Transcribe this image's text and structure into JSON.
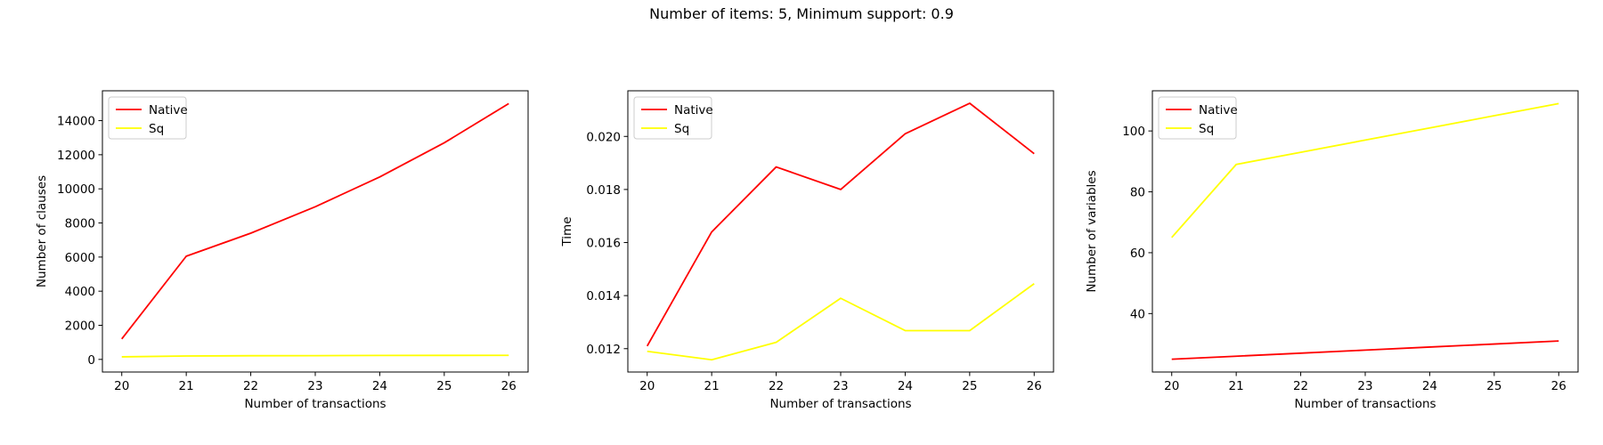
{
  "suptitle": "Number of items: 5, Minimum support: 0.9",
  "colors": {
    "Native": "#ff0000",
    "Sq": "#ffff00"
  },
  "chart_data": [
    {
      "type": "line",
      "x": [
        20,
        21,
        22,
        23,
        24,
        25,
        26
      ],
      "xticks": [
        20,
        21,
        22,
        23,
        24,
        25,
        26
      ],
      "xlim": [
        19.7,
        26.3
      ],
      "series": [
        {
          "name": "Native",
          "values": [
            1200,
            6050,
            7400,
            8950,
            10700,
            12700,
            15000
          ]
        },
        {
          "name": "Sq",
          "values": [
            150,
            200,
            215,
            220,
            230,
            235,
            240
          ]
        }
      ],
      "xlabel": "Number of transactions",
      "ylabel": "Number of clauses",
      "ylim": [
        -740,
        15750
      ],
      "yticks": [
        0,
        2000,
        4000,
        6000,
        8000,
        10000,
        12000,
        14000
      ],
      "ytick_labels": [
        "0",
        "2000",
        "4000",
        "6000",
        "8000",
        "10000",
        "12000",
        "14000"
      ],
      "legend": "upper-left",
      "grid": false
    },
    {
      "type": "line",
      "x": [
        20,
        21,
        22,
        23,
        24,
        25,
        26
      ],
      "xticks": [
        20,
        21,
        22,
        23,
        24,
        25,
        26
      ],
      "xlim": [
        19.7,
        26.3
      ],
      "series": [
        {
          "name": "Native",
          "values": [
            0.0121,
            0.0164,
            0.01885,
            0.018,
            0.0201,
            0.02125,
            0.01935
          ]
        },
        {
          "name": "Sq",
          "values": [
            0.0119,
            0.01158,
            0.01224,
            0.0139,
            0.01268,
            0.01268,
            0.01445
          ]
        }
      ],
      "xlabel": "Number of transactions",
      "ylabel": "Time",
      "ylim": [
        0.01112,
        0.02172
      ],
      "yticks": [
        0.012,
        0.014,
        0.016,
        0.018,
        0.02
      ],
      "ytick_labels": [
        "0.012",
        "0.014",
        "0.016",
        "0.018",
        "0.020"
      ],
      "legend": "upper-left",
      "grid": false
    },
    {
      "type": "line",
      "x": [
        20,
        21,
        22,
        23,
        24,
        25,
        26
      ],
      "xticks": [
        20,
        21,
        22,
        23,
        24,
        25,
        26
      ],
      "xlim": [
        19.7,
        26.3
      ],
      "series": [
        {
          "name": "Native",
          "values": [
            25,
            26,
            27,
            28,
            29,
            30,
            31
          ]
        },
        {
          "name": "Sq",
          "values": [
            65,
            89,
            93,
            97,
            101,
            105,
            109
          ]
        }
      ],
      "xlabel": "Number of transactions",
      "ylabel": "Number of variables",
      "ylim": [
        20.8,
        113.2
      ],
      "yticks": [
        40,
        60,
        80,
        100
      ],
      "ytick_labels": [
        "40",
        "60",
        "80",
        "100"
      ],
      "legend": "upper-left",
      "grid": false
    }
  ]
}
